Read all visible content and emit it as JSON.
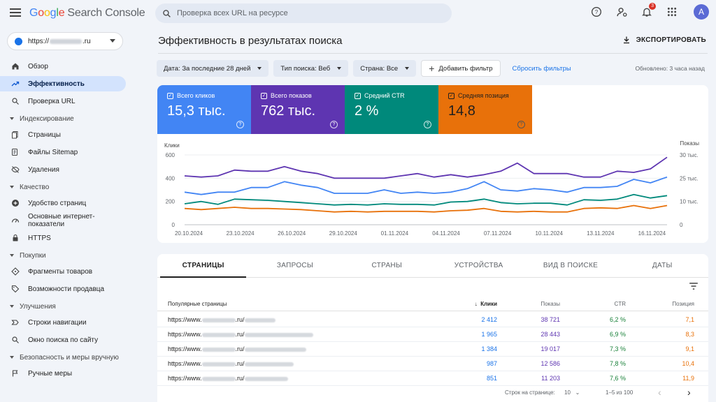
{
  "app": {
    "brand_google": "Google",
    "brand_rest": "Search Console"
  },
  "search": {
    "placeholder": "Проверка всех URL на ресурсе"
  },
  "topbar": {
    "notif_count": "3",
    "avatar_letter": "A"
  },
  "property": {
    "prefix": "https://",
    "suffix": ".ru"
  },
  "sidebar": {
    "items": [
      {
        "label": "Обзор",
        "icon": "home-icon"
      },
      {
        "label": "Эффективность",
        "icon": "trending-up-icon",
        "active": true
      },
      {
        "label": "Проверка URL",
        "icon": "search-icon"
      }
    ],
    "sections": [
      {
        "title": "Индексирование",
        "items": [
          {
            "label": "Страницы",
            "icon": "pages-icon"
          },
          {
            "label": "Файлы Sitemap",
            "icon": "sitemap-icon"
          },
          {
            "label": "Удаления",
            "icon": "visibility-off-icon"
          }
        ]
      },
      {
        "title": "Качество",
        "items": [
          {
            "label": "Удобство страниц",
            "icon": "plus-circle-icon"
          },
          {
            "label": "Основные интернет-показатели",
            "icon": "speed-icon"
          },
          {
            "label": "HTTPS",
            "icon": "lock-icon"
          }
        ]
      },
      {
        "title": "Покупки",
        "items": [
          {
            "label": "Фрагменты товаров",
            "icon": "diamond-icon"
          },
          {
            "label": "Возможности продавца",
            "icon": "tag-icon"
          }
        ]
      },
      {
        "title": "Улучшения",
        "items": [
          {
            "label": "Строки навигации",
            "icon": "breadcrumb-icon"
          },
          {
            "label": "Окно поиска по сайту",
            "icon": "search-icon"
          }
        ]
      },
      {
        "title": "Безопасность и меры вручную",
        "items": [
          {
            "label": "Ручные меры",
            "icon": "flag-icon"
          }
        ]
      }
    ]
  },
  "page": {
    "title": "Эффективность в результатах поиска",
    "export_label": "ЭКСПОРТИРОВАТЬ",
    "updated": "Обновлено: 3 часа назад"
  },
  "filters": {
    "date": "Дата: За последние 28 дней",
    "search_type": "Тип поиска: Веб",
    "country": "Страна: Все",
    "add": "Добавить фильтр",
    "reset": "Сбросить фильтры"
  },
  "metrics": [
    {
      "label": "Всего кликов",
      "value": "15,3 тыс.",
      "color": "#4285f4"
    },
    {
      "label": "Всего показов",
      "value": "762 тыс.",
      "color": "#5e35b1"
    },
    {
      "label": "Средний CTR",
      "value": "2 %",
      "color": "#00897b"
    },
    {
      "label": "Средняя позиция",
      "value": "14,8",
      "color": "#e8710a"
    }
  ],
  "chart_data": {
    "type": "line",
    "ylabel": "Клики",
    "y2label": "Показы",
    "ylim": [
      0,
      600
    ],
    "y_ticks": [
      "600",
      "400",
      "200",
      "0"
    ],
    "y2_ticks": [
      "30 тыс.",
      "25 тыс.",
      "10 тыс.",
      "0"
    ],
    "x_ticks": [
      "20.10.2024",
      "23.10.2024",
      "26.10.2024",
      "29.10.2024",
      "01.11.2024",
      "04.11.2024",
      "07.11.2024",
      "10.11.2024",
      "13.11.2024",
      "16.11.2024"
    ],
    "x": [
      "20.10",
      "21.10",
      "22.10",
      "23.10",
      "24.10",
      "25.10",
      "26.10",
      "27.10",
      "28.10",
      "29.10",
      "30.10",
      "31.10",
      "01.11",
      "02.11",
      "03.11",
      "04.11",
      "05.11",
      "06.11",
      "07.11",
      "08.11",
      "09.11",
      "10.11",
      "11.11",
      "12.11",
      "13.11",
      "14.11",
      "15.11",
      "16.11",
      "17.11",
      "18.11"
    ],
    "grid": true,
    "series": [
      {
        "name": "Показы",
        "color": "#5e35b1",
        "values": [
          420,
          410,
          420,
          470,
          460,
          460,
          500,
          460,
          440,
          400,
          400,
          400,
          400,
          420,
          440,
          410,
          430,
          410,
          430,
          460,
          530,
          440,
          440,
          440,
          410,
          410,
          460,
          450,
          480,
          580
        ]
      },
      {
        "name": "Клики",
        "color": "#4285f4",
        "values": [
          280,
          260,
          280,
          280,
          320,
          320,
          370,
          340,
          320,
          270,
          270,
          270,
          300,
          270,
          280,
          270,
          280,
          310,
          370,
          300,
          290,
          310,
          300,
          280,
          320,
          320,
          330,
          390,
          360,
          410
        ]
      },
      {
        "name": "CTR",
        "color": "#00897b",
        "values": [
          180,
          200,
          175,
          220,
          215,
          210,
          200,
          190,
          180,
          170,
          175,
          170,
          180,
          175,
          175,
          170,
          195,
          200,
          220,
          190,
          180,
          185,
          185,
          170,
          215,
          210,
          220,
          260,
          230,
          250
        ]
      },
      {
        "name": "Позиция",
        "color": "#e8710a",
        "values": [
          140,
          130,
          140,
          150,
          140,
          140,
          135,
          130,
          120,
          110,
          115,
          110,
          115,
          115,
          115,
          110,
          120,
          125,
          140,
          115,
          110,
          115,
          110,
          110,
          140,
          145,
          140,
          165,
          140,
          165
        ]
      }
    ]
  },
  "tabs": [
    "СТРАНИЦЫ",
    "ЗАПРОСЫ",
    "СТРАНЫ",
    "УСТРОЙСТВА",
    "ВИД В ПОИСКЕ",
    "ДАТЫ"
  ],
  "table": {
    "headers": {
      "url": "Популярные страницы",
      "clicks": "Клики",
      "impressions": "Показы",
      "ctr": "CTR",
      "position": "Позиция"
    },
    "rows": [
      {
        "url_prefix": "https://www.",
        "url_mid": ".ru/",
        "clicks": "2 412",
        "impressions": "38 721",
        "ctr": "6,2 %",
        "position": "7,1"
      },
      {
        "url_prefix": "https://www.",
        "url_mid": ".ru/",
        "clicks": "1 965",
        "impressions": "28 443",
        "ctr": "6,9 %",
        "position": "8,3"
      },
      {
        "url_prefix": "https://www.",
        "url_mid": ".ru/",
        "clicks": "1 384",
        "impressions": "19 017",
        "ctr": "7,3 %",
        "position": "9,1"
      },
      {
        "url_prefix": "https://www.",
        "url_mid": ".ru/",
        "clicks": "987",
        "impressions": "12 586",
        "ctr": "7,8 %",
        "position": "10,4"
      },
      {
        "url_prefix": "https://www.",
        "url_mid": ".ru/",
        "clicks": "851",
        "impressions": "11 203",
        "ctr": "7,6 %",
        "position": "11,9"
      }
    ],
    "pager": {
      "rows_label": "Строк на странице:",
      "rows_value": "10",
      "range": "1–5 из 100"
    }
  }
}
